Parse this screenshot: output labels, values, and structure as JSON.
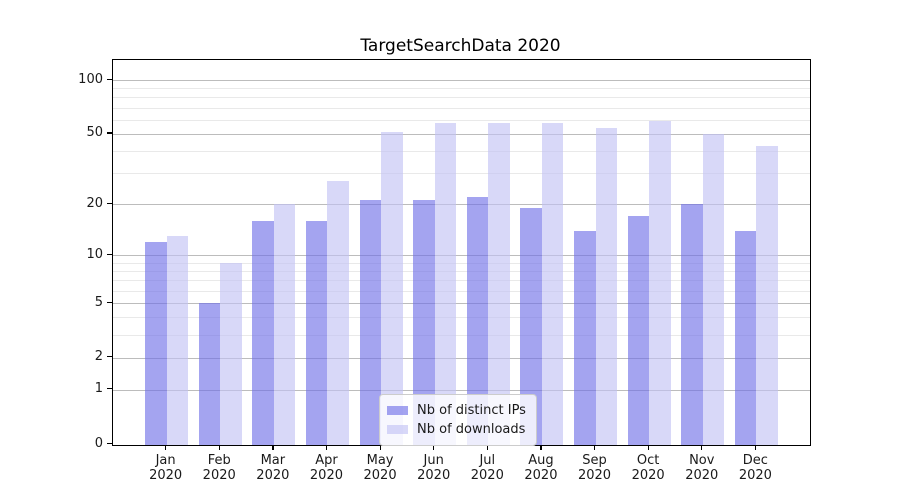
{
  "chart_data": {
    "type": "bar",
    "title": "TargetSearchData 2020",
    "categories": [
      "Jan",
      "Feb",
      "Mar",
      "Apr",
      "May",
      "Jun",
      "Jul",
      "Aug",
      "Sep",
      "Oct",
      "Nov",
      "Dec"
    ],
    "x_tick_year": "2020",
    "series": [
      {
        "name": "Nb of distinct IPs",
        "color": "#6f6fe8",
        "alpha": 0.63,
        "values": [
          12,
          5,
          16,
          16,
          21,
          21,
          22,
          19,
          14,
          17,
          20,
          14
        ]
      },
      {
        "name": "Nb of downloads",
        "color": "#c2c2f4",
        "alpha": 0.63,
        "values": [
          13,
          9,
          20,
          27,
          51,
          58,
          58,
          58,
          54,
          59,
          50,
          43
        ]
      }
    ],
    "yscale": "log1p",
    "ylim": [
      0,
      130
    ],
    "yticks": [
      0,
      1,
      2,
      5,
      10,
      20,
      50,
      100
    ],
    "yticks_minor": [
      3,
      4,
      6,
      7,
      8,
      9,
      30,
      40,
      60,
      70,
      80,
      90
    ],
    "grid": {
      "major_color": "#bcbcbc",
      "minor_color": "#e9e9e9"
    },
    "legend_position": "lower center",
    "background": "#ffffff",
    "text_color": "#1a1a1a"
  }
}
